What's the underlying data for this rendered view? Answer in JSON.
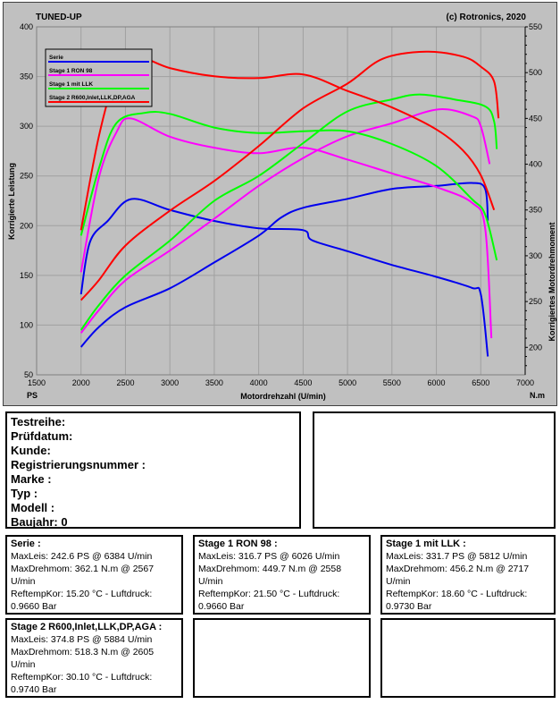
{
  "header": {
    "left_label": "TUNED-UP",
    "right_label": "(c) Rotronics, 2020"
  },
  "chart_data": {
    "type": "line",
    "xlabel": "Motordrehzahl (U/min)",
    "ylabel_left": "Korrigierte Leistung",
    "ylabel_right": "Korrigiertes Motordrehmoment",
    "unit_left": "PS",
    "unit_right": "N.m",
    "xlim": [
      1500,
      7000
    ],
    "ylim_left": [
      50,
      400
    ],
    "ylim_right": [
      170,
      550
    ],
    "x_ticks": [
      "1500",
      "2000",
      "2500",
      "3000",
      "3500",
      "4000",
      "4500",
      "5000",
      "5500",
      "6000",
      "6500",
      "7000"
    ],
    "y_ticks_left": [
      "50",
      "100",
      "150",
      "200",
      "250",
      "300",
      "350",
      "400"
    ],
    "y_ticks_right": [
      "200",
      "250",
      "300",
      "350",
      "400",
      "450",
      "500",
      "550"
    ],
    "legend_position": "top-left",
    "series": [
      {
        "name": "Serie",
        "color": "#0000ee",
        "power": [
          [
            2000,
            78
          ],
          [
            2200,
            98
          ],
          [
            2500,
            118
          ],
          [
            3000,
            137
          ],
          [
            3500,
            163
          ],
          [
            4000,
            190
          ],
          [
            4250,
            208
          ],
          [
            4500,
            218
          ],
          [
            5000,
            227
          ],
          [
            5500,
            237
          ],
          [
            6000,
            240
          ],
          [
            6400,
            243
          ],
          [
            6550,
            237
          ],
          [
            6580,
            205
          ]
        ],
        "torque": [
          [
            2000,
            258
          ],
          [
            2100,
            315
          ],
          [
            2300,
            338
          ],
          [
            2567,
            362
          ],
          [
            3000,
            350
          ],
          [
            3500,
            338
          ],
          [
            4000,
            330
          ],
          [
            4500,
            328
          ],
          [
            4600,
            317
          ],
          [
            5000,
            305
          ],
          [
            5500,
            290
          ],
          [
            6000,
            277
          ],
          [
            6400,
            265
          ],
          [
            6500,
            258
          ],
          [
            6580,
            190
          ]
        ]
      },
      {
        "name": "Stage 1 RON 98",
        "color": "#ff00ff",
        "power": [
          [
            2000,
            92
          ],
          [
            2200,
            115
          ],
          [
            2500,
            145
          ],
          [
            3000,
            175
          ],
          [
            3500,
            207
          ],
          [
            4000,
            240
          ],
          [
            4500,
            268
          ],
          [
            5000,
            290
          ],
          [
            5500,
            303
          ],
          [
            6026,
            317
          ],
          [
            6400,
            310
          ],
          [
            6500,
            300
          ],
          [
            6600,
            262
          ]
        ],
        "torque": [
          [
            2000,
            282
          ],
          [
            2200,
            385
          ],
          [
            2400,
            435
          ],
          [
            2558,
            450
          ],
          [
            3000,
            430
          ],
          [
            3500,
            418
          ],
          [
            4000,
            412
          ],
          [
            4500,
            418
          ],
          [
            5000,
            405
          ],
          [
            5500,
            390
          ],
          [
            6000,
            375
          ],
          [
            6400,
            358
          ],
          [
            6550,
            330
          ],
          [
            6620,
            210
          ]
        ]
      },
      {
        "name": "Stage 1 mit LLK",
        "color": "#00ff00",
        "power": [
          [
            2000,
            95
          ],
          [
            2200,
            120
          ],
          [
            2500,
            150
          ],
          [
            3000,
            185
          ],
          [
            3500,
            225
          ],
          [
            4000,
            250
          ],
          [
            4500,
            283
          ],
          [
            5000,
            315
          ],
          [
            5500,
            327
          ],
          [
            5812,
            332
          ],
          [
            6200,
            327
          ],
          [
            6550,
            320
          ],
          [
            6650,
            305
          ],
          [
            6680,
            277
          ]
        ],
        "torque": [
          [
            2000,
            322
          ],
          [
            2200,
            395
          ],
          [
            2400,
            445
          ],
          [
            2717,
            456
          ],
          [
            3000,
            455
          ],
          [
            3500,
            440
          ],
          [
            4000,
            434
          ],
          [
            4500,
            436
          ],
          [
            5000,
            436
          ],
          [
            5500,
            422
          ],
          [
            6000,
            398
          ],
          [
            6400,
            362
          ],
          [
            6550,
            345
          ],
          [
            6680,
            295
          ]
        ]
      },
      {
        "name": "Stage 2 R600,Inlet,LLK,DP,AGA",
        "color": "#ff0000",
        "power": [
          [
            2000,
            125
          ],
          [
            2200,
            145
          ],
          [
            2500,
            180
          ],
          [
            3000,
            215
          ],
          [
            3500,
            245
          ],
          [
            4000,
            280
          ],
          [
            4500,
            318
          ],
          [
            5000,
            343
          ],
          [
            5400,
            368
          ],
          [
            5884,
            375
          ],
          [
            6300,
            370
          ],
          [
            6500,
            360
          ],
          [
            6650,
            345
          ],
          [
            6700,
            308
          ]
        ],
        "torque": [
          [
            2000,
            328
          ],
          [
            2200,
            430
          ],
          [
            2400,
            498
          ],
          [
            2605,
            518
          ],
          [
            3000,
            505
          ],
          [
            3500,
            496
          ],
          [
            4000,
            494
          ],
          [
            4500,
            498
          ],
          [
            5000,
            480
          ],
          [
            5500,
            462
          ],
          [
            6000,
            438
          ],
          [
            6300,
            415
          ],
          [
            6500,
            388
          ],
          [
            6650,
            350
          ]
        ]
      }
    ]
  },
  "info": {
    "testreihe": "Testreihe:",
    "pruefdatum": "Prüfdatum:",
    "kunde": "Kunde:",
    "registrierungsnummer": "Registrierungsnummer  :",
    "marke": "Marke  :",
    "typ": "Typ  :",
    "modell": "Modell  :",
    "baujahr": "Baujahr: 0"
  },
  "summaries": {
    "serie": {
      "title": "Serie :",
      "maxleis": "MaxLeis: 242.6 PS @ 6384 U/min",
      "maxdreh": "MaxDrehmom: 362.1 N.m @ 2567",
      "unit": "U/min",
      "reftemp": "ReftempKor: 15.20 °C - Luftdruck:",
      "druck": "0.9660 Bar"
    },
    "stage1": {
      "title": "Stage 1 RON 98 :",
      "maxleis": "MaxLeis: 316.7 PS @ 6026 U/min",
      "maxdreh": "MaxDrehmom: 449.7 N.m @ 2558",
      "unit": "U/min",
      "reftemp": "ReftempKor: 21.50 °C - Luftdruck:",
      "druck": "0.9660 Bar"
    },
    "stage1llk": {
      "title": "Stage 1 mit LLK :",
      "maxleis": "MaxLeis: 331.7 PS @ 5812 U/min",
      "maxdreh": "MaxDrehmom: 456.2 N.m @ 2717",
      "unit": "U/min",
      "reftemp": "ReftempKor: 18.60 °C - Luftdruck:",
      "druck": "0.9730 Bar"
    },
    "stage2": {
      "title": "Stage 2 R600,Inlet,LLK,DP,AGA :",
      "maxleis": "MaxLeis: 374.8 PS @ 5884 U/min",
      "maxdreh": "MaxDrehmom: 518.3 N.m @ 2605",
      "unit": "U/min",
      "reftemp": "ReftempKor: 30.10 °C - Luftdruck:",
      "druck": "0.9740 Bar"
    }
  }
}
